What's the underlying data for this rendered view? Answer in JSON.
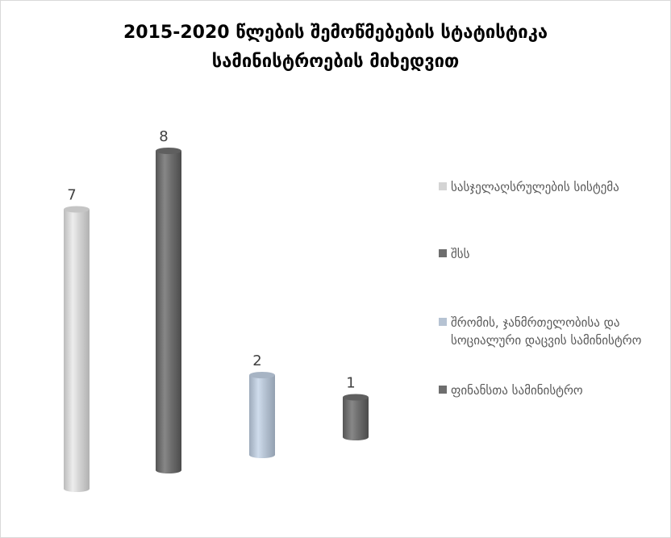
{
  "chart_data": {
    "type": "bar",
    "title_line1": "2015-2020 წლების შემოწმებების სტატისტიკა",
    "title_line2": "სამინისტროების მიხედვით",
    "categories": [
      "სასჯელაღსრულების სისტემა",
      "შსს",
      "შრომის, ჯანმრთელობისა და სოციალური დაცვის სამინისტრო",
      "ფინანსთა სამინისტრო"
    ],
    "values": [
      7,
      8,
      2,
      1
    ],
    "colors": [
      "#d4d4d4",
      "#6e6e6e",
      "#b6c3d3",
      "#6e6e6e"
    ],
    "legend_position": "right",
    "grid": false
  }
}
